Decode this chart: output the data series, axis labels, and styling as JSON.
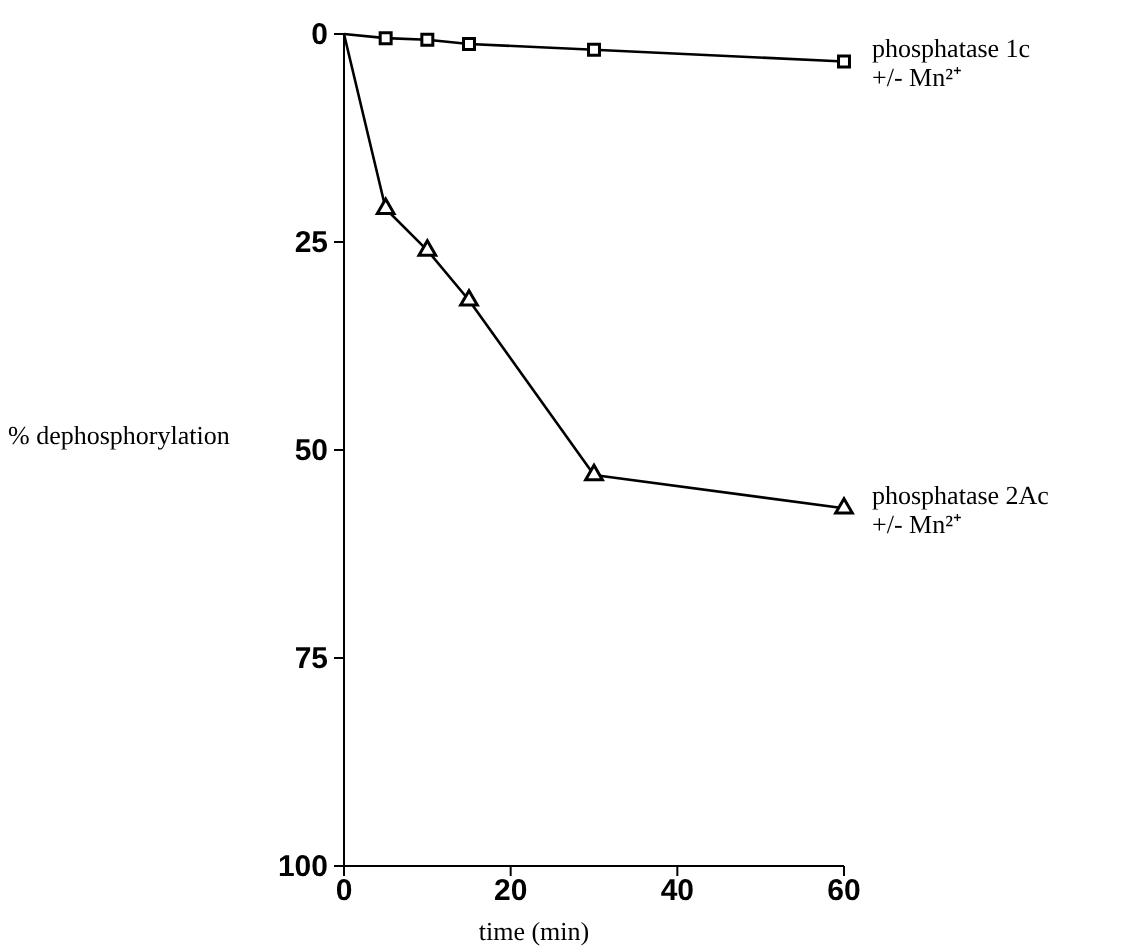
{
  "chart_data": {
    "type": "line",
    "xlabel": "time (min)",
    "ylabel": "% dephosphorylation",
    "xlim": [
      0,
      60
    ],
    "xticks": [
      0,
      20,
      40,
      60
    ],
    "ylim": [
      100,
      0
    ],
    "yticks": [
      0,
      25,
      50,
      75,
      100
    ],
    "grid": false,
    "series": [
      {
        "name": "phosphatase 1c +/- Mn²⁺",
        "color": "#000000",
        "marker": "square",
        "x": [
          0,
          5,
          10,
          15,
          30,
          60
        ],
        "values": [
          0,
          0.5,
          0.7,
          1.2,
          1.9,
          3.3
        ]
      },
      {
        "name": "phosphatase 2Ac +/- Mn²⁺",
        "color": "#000000",
        "marker": "triangle",
        "x": [
          0,
          5,
          10,
          15,
          30,
          60
        ],
        "values": [
          0,
          21,
          26,
          32,
          53,
          57
        ]
      }
    ]
  }
}
